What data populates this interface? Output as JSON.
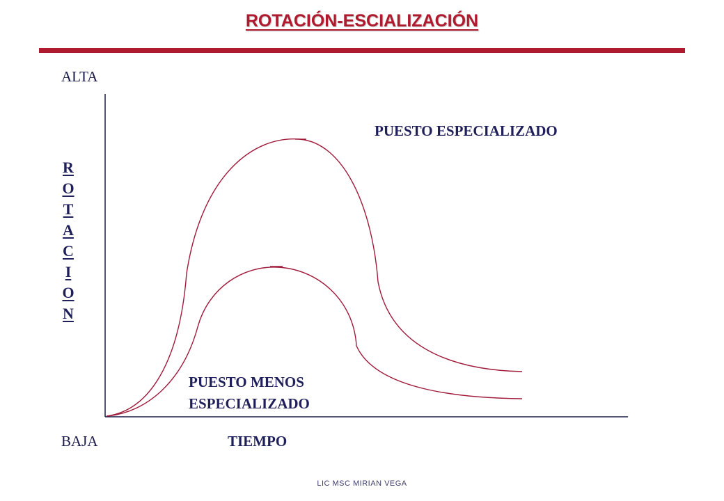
{
  "title": "ROTACIÓN-ESCIALIZACIÓN",
  "labels": {
    "alta": "ALTA",
    "baja": "BAJA",
    "rotacion": "ROTACION",
    "tiempo": "TIEMPO",
    "especializado": "PUESTO ESPECIALIZADO",
    "menos_line1": "PUESTO MENOS",
    "menos_line2": "ESPECIALIZADO"
  },
  "footer": "LIC MSC MIRIAN VEGA",
  "colors": {
    "accent": "#b01a2e",
    "curve": "#a01a3a",
    "axis": "#1a1a4a"
  }
}
